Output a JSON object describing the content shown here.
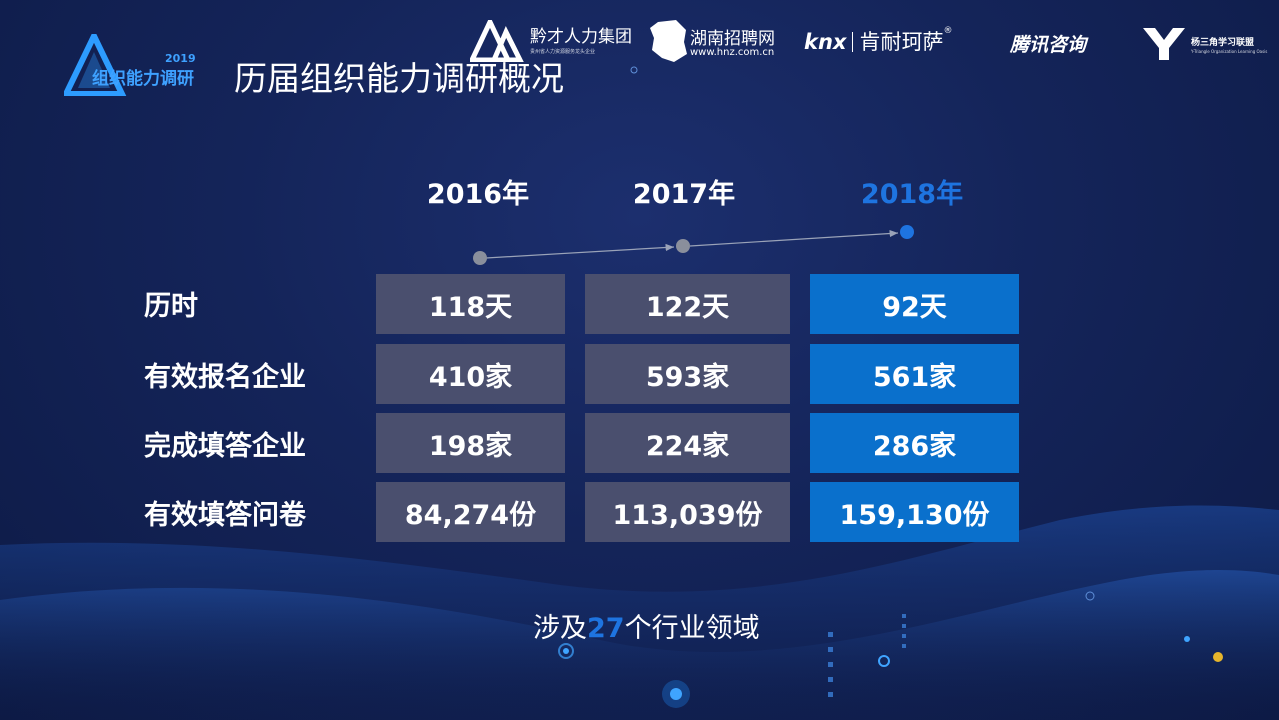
{
  "header": {
    "badge_year": "2019",
    "badge_text": "组织能力调研",
    "title": "历届组织能力调研概况"
  },
  "partners": {
    "p1": {
      "name": "黔才人力集团",
      "sub": "贵州省人力资源服务龙头企业"
    },
    "p2": {
      "name": "湖南招聘网",
      "url": "www.hnz.com.cn"
    },
    "p3": {
      "name_en": "knx",
      "name_cn": "肯耐珂萨",
      "reg": "®"
    },
    "p4": {
      "name": "腾讯咨询"
    },
    "p5": {
      "name": "杨三角学习联盟",
      "sub": "Y-Triangle Organization Learning Oasis"
    }
  },
  "years": [
    "2016年",
    "2017年",
    "2018年"
  ],
  "rows": [
    {
      "label": "历时",
      "values": [
        "118天",
        "122天",
        "92天"
      ]
    },
    {
      "label": "有效报名企业",
      "values": [
        "410家",
        "593家",
        "561家"
      ]
    },
    {
      "label": "完成填答企业",
      "values": [
        "198家",
        "224家",
        "286家"
      ]
    },
    {
      "label": "有效填答问卷",
      "values": [
        "84,274份",
        "113,039份",
        "159,130份"
      ]
    }
  ],
  "footer": {
    "prefix": "涉及",
    "number": "27",
    "suffix": "个行业领域"
  },
  "colors": {
    "accent": "#1e74e0",
    "gray_cell": "#4a4f6e",
    "blue_cell": "#0a70cc",
    "background": "#142459"
  }
}
